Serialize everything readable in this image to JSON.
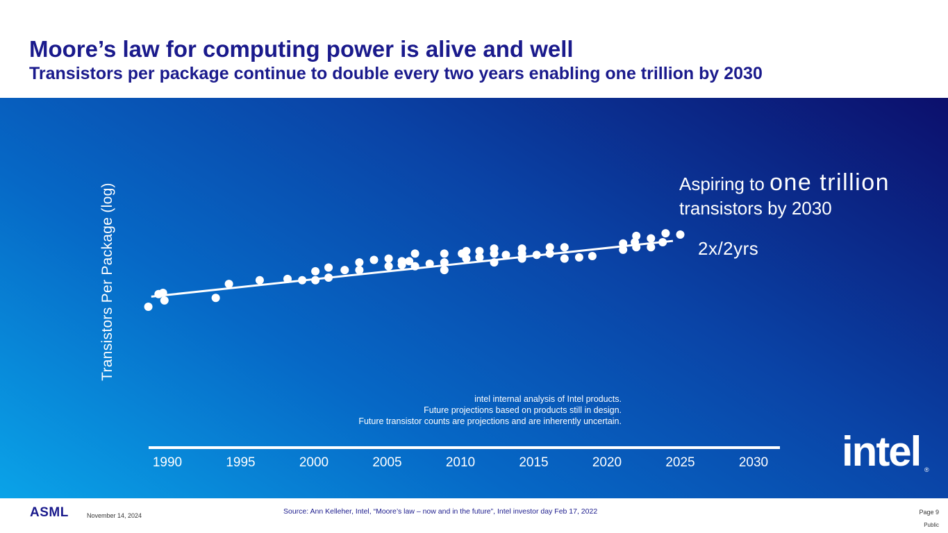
{
  "header": {
    "title": "Moore’s law for computing power is alive and well",
    "subtitle": "Transistors per package continue to double every two years enabling one trillion by 2030"
  },
  "annotation": {
    "aspire_prefix": "Aspiring to ",
    "aspire_emphasis": "one trillion",
    "aspire_suffix": "transistors by 2030",
    "rate": "2x/2yrs"
  },
  "notes": {
    "line1": "intel internal analysis of Intel products.",
    "line2": "Future projections based on products still in design.",
    "line3": "Future transistor counts are projections and are inherently uncertain."
  },
  "logo": {
    "text": "intel",
    "reg": "®"
  },
  "footer": {
    "brand": "ASML",
    "date": "November 14, 2024",
    "source": "Source: Ann Kelleher, Intel, “Moore’s law – now and in the future”, Intel investor day  Feb 17, 2022",
    "page": "Page 9",
    "classification": "Public"
  },
  "colors": {
    "title": "#1a1a8c",
    "panel_light": "#0aa3e8",
    "panel_dark": "#0c0f6c",
    "marks": "#ffffff"
  },
  "chart_data": {
    "type": "scatter",
    "title": "",
    "xlabel": "",
    "ylabel": "Transistors Per Package (log)",
    "xlim": [
      1989.5,
      2031
    ],
    "ylim": [
      0,
      10
    ],
    "x_ticks": [
      "1990",
      "1995",
      "2000",
      "2005",
      "2010",
      "2015",
      "2020",
      "2025",
      "2030"
    ],
    "y_scale": "log (relative)",
    "trend": {
      "label": "2x/2yrs",
      "x": [
        1988.9,
        2024.5
      ],
      "y": [
        3.55,
        5.75
      ]
    },
    "points": [
      {
        "x": 1988.7,
        "y": 3.15
      },
      {
        "x": 1989.4,
        "y": 3.65
      },
      {
        "x": 1989.7,
        "y": 3.7
      },
      {
        "x": 1989.8,
        "y": 3.4
      },
      {
        "x": 1993.3,
        "y": 3.5
      },
      {
        "x": 1994.2,
        "y": 4.05
      },
      {
        "x": 1996.3,
        "y": 4.2
      },
      {
        "x": 1998.2,
        "y": 4.25
      },
      {
        "x": 1999.2,
        "y": 4.2
      },
      {
        "x": 2000.1,
        "y": 4.2
      },
      {
        "x": 2000.1,
        "y": 4.55
      },
      {
        "x": 2001.0,
        "y": 4.3
      },
      {
        "x": 2001.0,
        "y": 4.7
      },
      {
        "x": 2002.1,
        "y": 4.6
      },
      {
        "x": 2003.1,
        "y": 4.6
      },
      {
        "x": 2003.1,
        "y": 4.9
      },
      {
        "x": 2004.1,
        "y": 5.0
      },
      {
        "x": 2005.1,
        "y": 4.75
      },
      {
        "x": 2005.1,
        "y": 5.05
      },
      {
        "x": 2006.0,
        "y": 4.8
      },
      {
        "x": 2006.0,
        "y": 4.95
      },
      {
        "x": 2006.5,
        "y": 4.95
      },
      {
        "x": 2006.9,
        "y": 4.75
      },
      {
        "x": 2006.9,
        "y": 5.25
      },
      {
        "x": 2007.9,
        "y": 4.85
      },
      {
        "x": 2008.9,
        "y": 4.6
      },
      {
        "x": 2008.9,
        "y": 4.9
      },
      {
        "x": 2008.9,
        "y": 5.25
      },
      {
        "x": 2010.1,
        "y": 5.25
      },
      {
        "x": 2010.4,
        "y": 5.05
      },
      {
        "x": 2010.4,
        "y": 5.35
      },
      {
        "x": 2011.3,
        "y": 5.1
      },
      {
        "x": 2011.3,
        "y": 5.35
      },
      {
        "x": 2012.3,
        "y": 4.9
      },
      {
        "x": 2012.3,
        "y": 5.25
      },
      {
        "x": 2012.3,
        "y": 5.45
      },
      {
        "x": 2013.1,
        "y": 5.2
      },
      {
        "x": 2014.2,
        "y": 5.05
      },
      {
        "x": 2014.2,
        "y": 5.25
      },
      {
        "x": 2014.2,
        "y": 5.45
      },
      {
        "x": 2015.2,
        "y": 5.2
      },
      {
        "x": 2016.1,
        "y": 5.25
      },
      {
        "x": 2016.1,
        "y": 5.5
      },
      {
        "x": 2017.1,
        "y": 5.05
      },
      {
        "x": 2017.1,
        "y": 5.5
      },
      {
        "x": 2018.1,
        "y": 5.1
      },
      {
        "x": 2019.0,
        "y": 5.15
      },
      {
        "x": 2021.1,
        "y": 5.4
      },
      {
        "x": 2021.1,
        "y": 5.65
      },
      {
        "x": 2021.9,
        "y": 5.7
      },
      {
        "x": 2022.0,
        "y": 5.5
      },
      {
        "x": 2022.0,
        "y": 5.95
      },
      {
        "x": 2023.0,
        "y": 5.5
      },
      {
        "x": 2023.0,
        "y": 5.85
      },
      {
        "x": 2023.8,
        "y": 5.7
      },
      {
        "x": 2024.0,
        "y": 6.05
      },
      {
        "x": 2025.0,
        "y": 6.0
      }
    ]
  }
}
